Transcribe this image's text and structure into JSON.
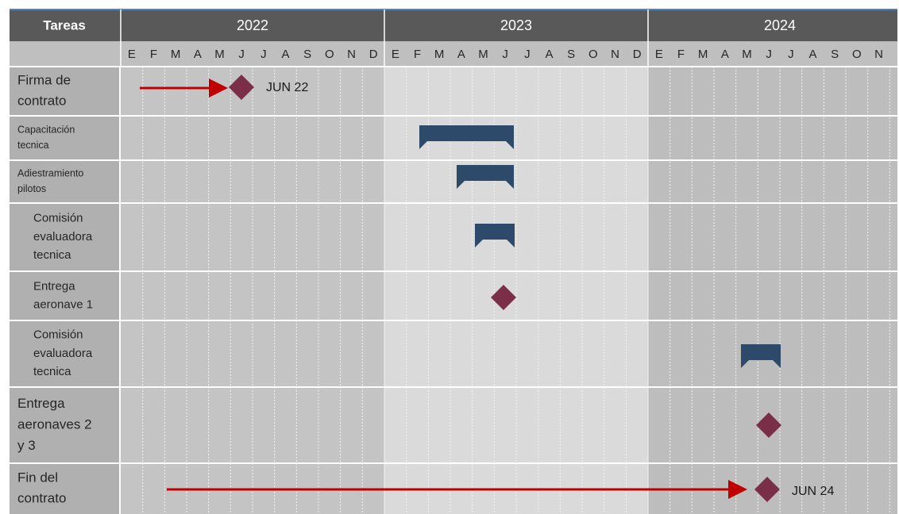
{
  "header": {
    "title": "Tareas",
    "years": [
      {
        "label": "2022",
        "months": [
          "E",
          "F",
          "M",
          "A",
          "M",
          "J",
          "J",
          "A",
          "S",
          "O",
          "N",
          "D"
        ]
      },
      {
        "label": "2023",
        "months": [
          "E",
          "F",
          "M",
          "A",
          "M",
          "J",
          "J",
          "A",
          "S",
          "O",
          "N",
          "D"
        ]
      },
      {
        "label": "2024",
        "months": [
          "E",
          "F",
          "M",
          "A",
          "M",
          "J",
          "J",
          "A",
          "S",
          "O",
          "N"
        ]
      }
    ]
  },
  "tasks": [
    {
      "label": [
        "Firma de",
        "contrato"
      ],
      "annotation": "JUN 22"
    },
    {
      "label": [
        "Capacitación",
        "tecnica"
      ]
    },
    {
      "label": [
        "Adiestramiento",
        "pilotos"
      ]
    },
    {
      "label": [
        "Comisión",
        "evaluadora",
        "tecnica"
      ]
    },
    {
      "label": [
        "Entrega",
        "aeronave 1"
      ]
    },
    {
      "label": [
        "Comisión",
        "evaluadora",
        "tecnica"
      ]
    },
    {
      "label": [
        "Entrega",
        "aeronaves 2",
        "y 3"
      ]
    },
    {
      "label": [
        "Fin del",
        "contrato"
      ],
      "annotation": "JUN 24"
    }
  ]
}
